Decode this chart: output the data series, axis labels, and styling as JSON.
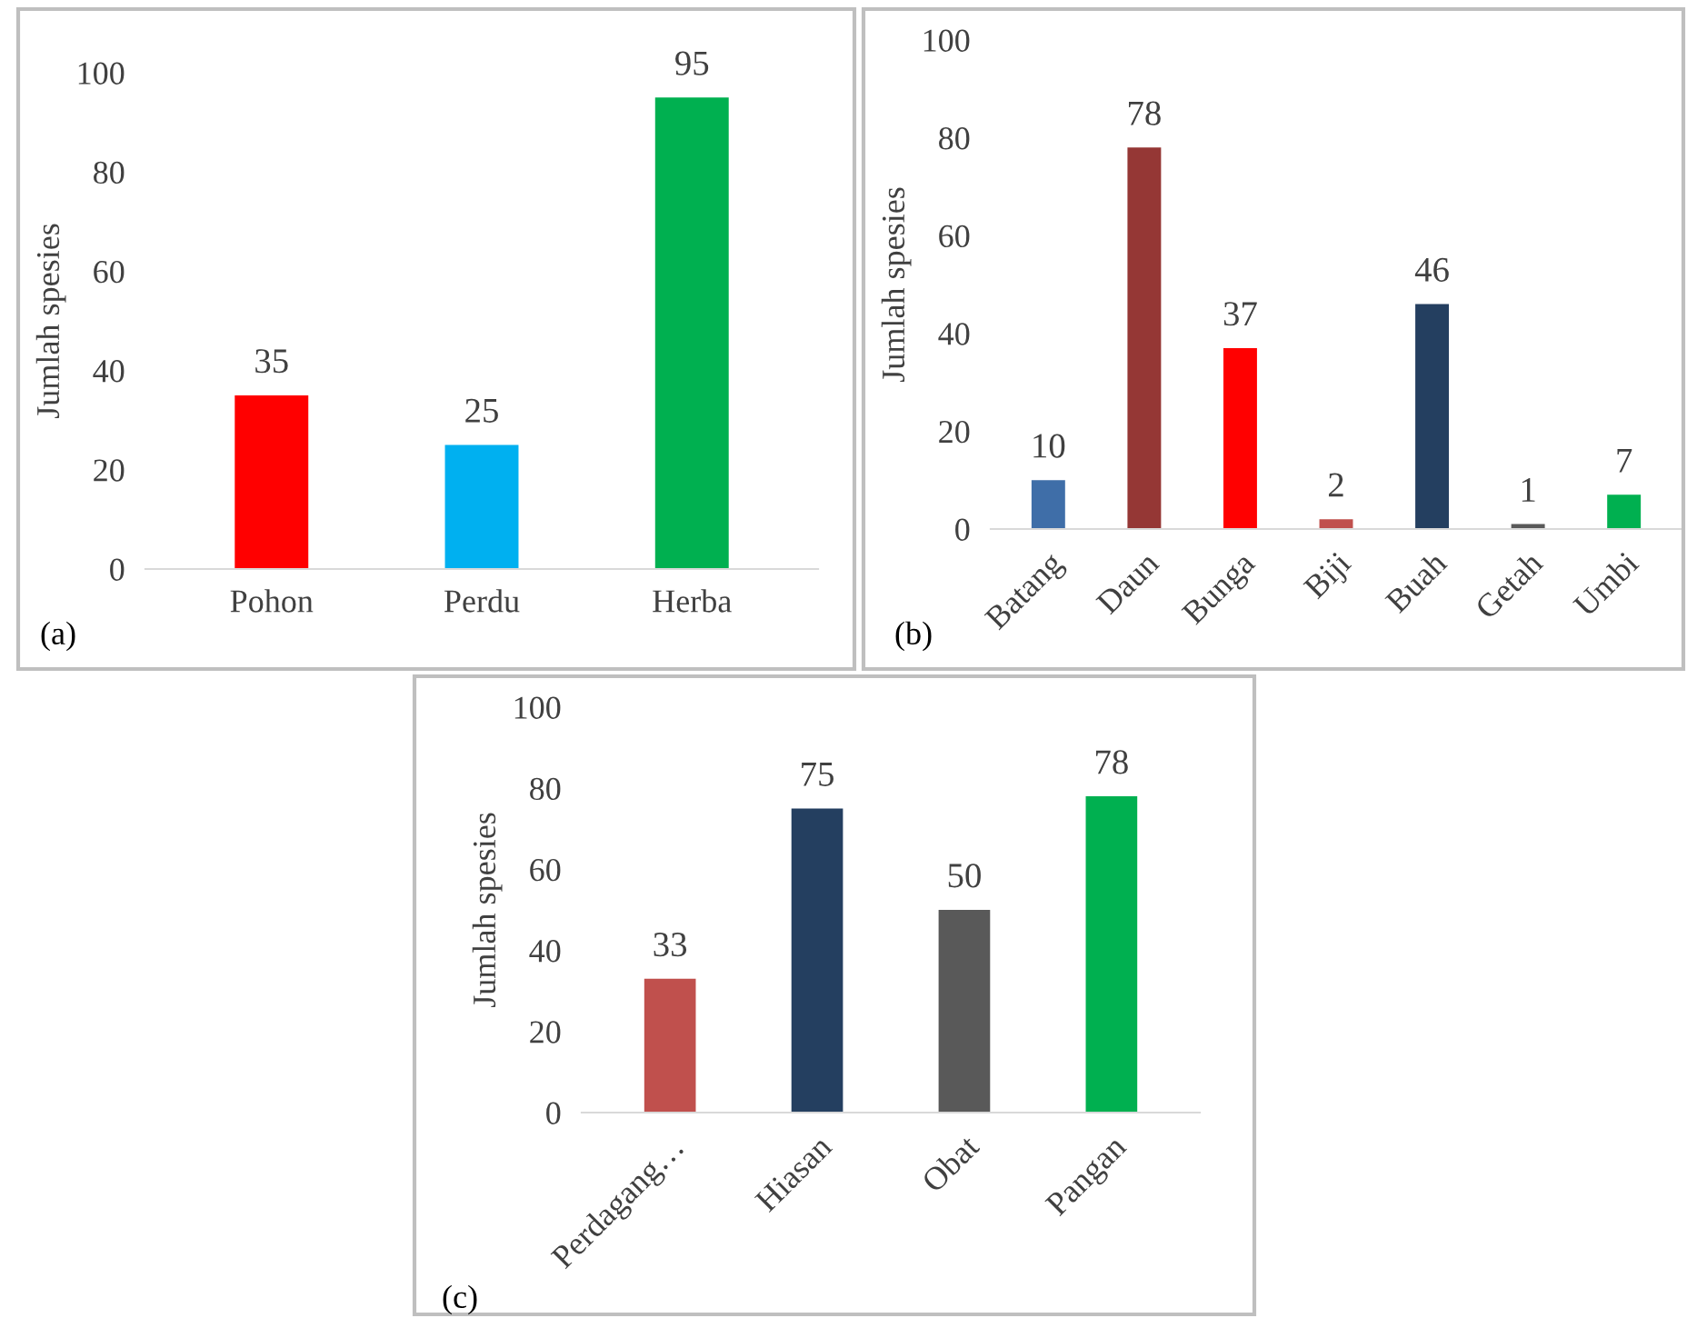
{
  "chart_data": [
    {
      "type": "bar",
      "categories": [
        "Pohon",
        "Perdu",
        "Herba"
      ],
      "values": [
        35,
        25,
        95
      ],
      "colors": [
        "#ff0000",
        "#00b0f0",
        "#00b050"
      ],
      "ylabel": "Jumlah spesies",
      "ylim": [
        0,
        100
      ],
      "yticks": [
        0,
        20,
        40,
        60,
        80,
        100
      ],
      "data_labels": true,
      "grid": false,
      "annotations": [
        "(a)"
      ]
    },
    {
      "type": "bar",
      "categories": [
        "Batang",
        "Daun",
        "Bunga",
        "Biji",
        "Buah",
        "Getah",
        "Umbi"
      ],
      "values": [
        10,
        78,
        37,
        2,
        46,
        1,
        7
      ],
      "colors": [
        "#3f6ea8",
        "#953735",
        "#ff0000",
        "#c0504d",
        "#243f60",
        "#595959",
        "#00b050"
      ],
      "ylabel": "Jumlah spesies",
      "ylim": [
        0,
        100
      ],
      "yticks": [
        0,
        20,
        40,
        60,
        80,
        100
      ],
      "data_labels": true,
      "grid": false,
      "annotations": [
        "(b)"
      ]
    },
    {
      "type": "bar",
      "categories": [
        "Perdagang…",
        "Hiasan",
        "Obat",
        "Pangan"
      ],
      "values": [
        33,
        75,
        50,
        78
      ],
      "colors": [
        "#c0504d",
        "#243f60",
        "#595959",
        "#00b050"
      ],
      "ylabel": "Jumlah spesies",
      "ylim": [
        0,
        100
      ],
      "yticks": [
        0,
        20,
        40,
        60,
        80,
        100
      ],
      "data_labels": true,
      "grid": false,
      "annotations": [
        "(c)"
      ]
    }
  ]
}
